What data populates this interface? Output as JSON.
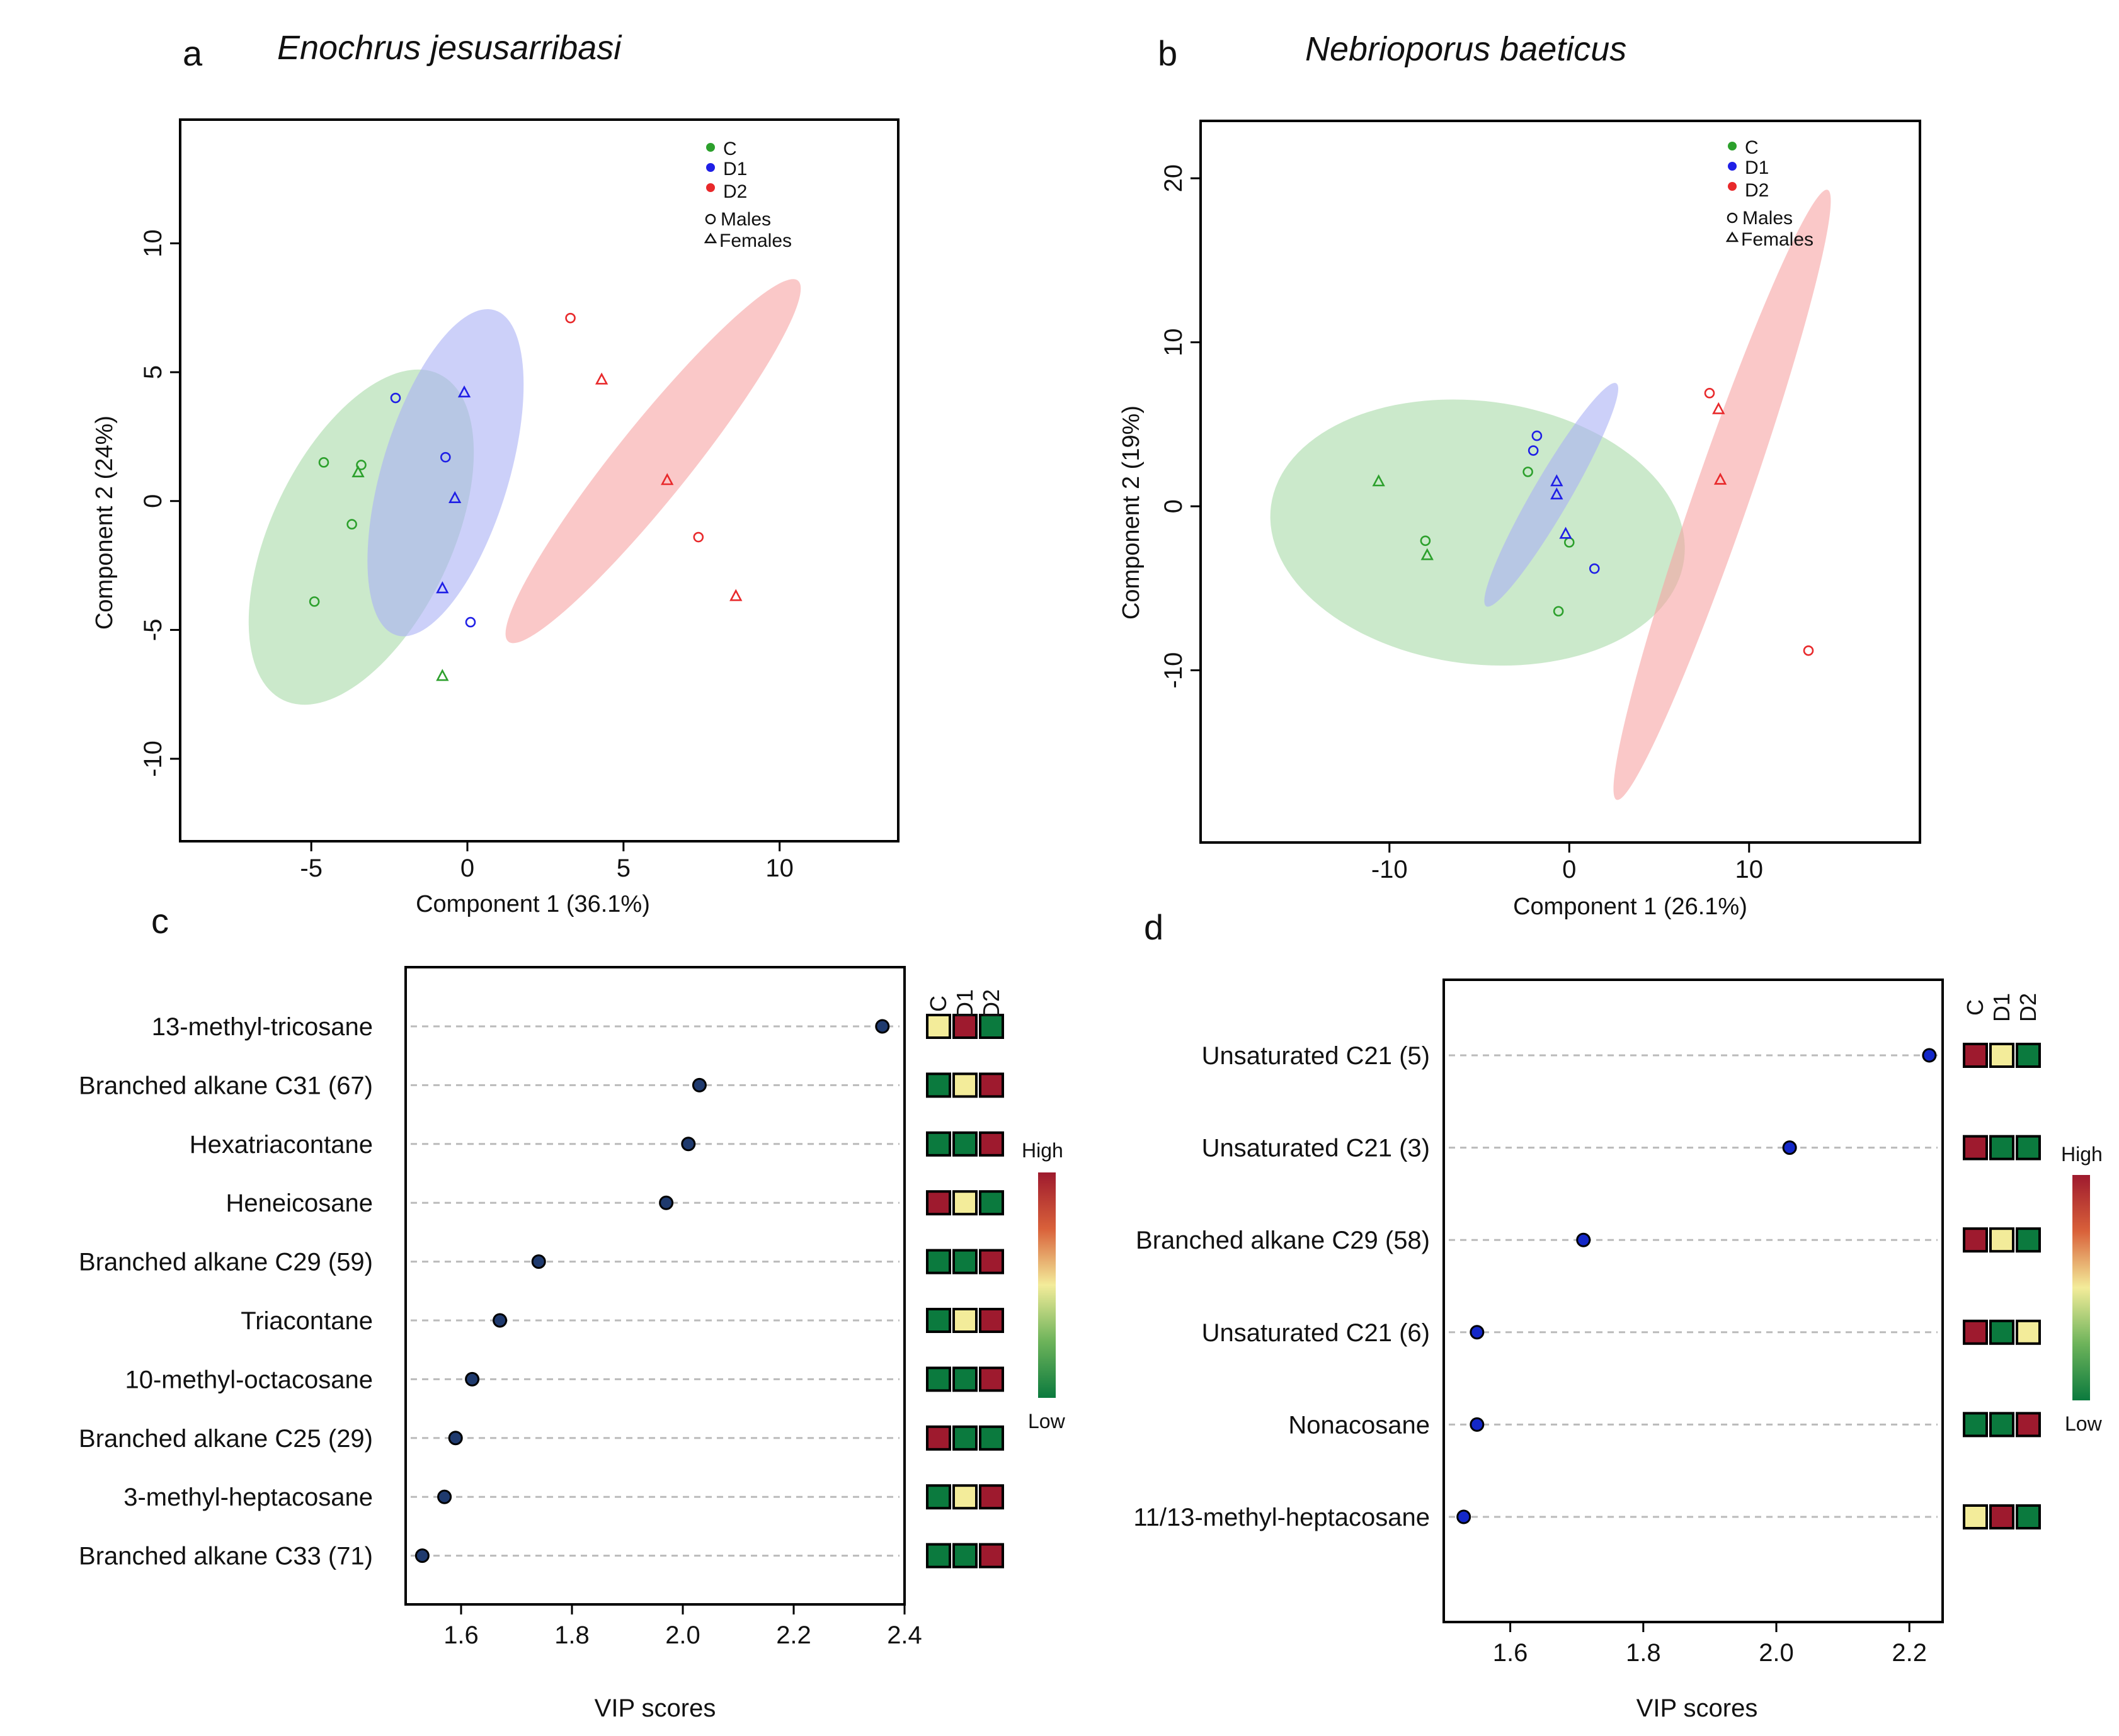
{
  "colors": {
    "C": "#2ca02c",
    "D1": "#1f1fe6",
    "D2": "#e8292b",
    "fillC": "#a8dba8",
    "fillD1": "#aab0f5",
    "fillD2": "#f7a4a4",
    "heatHigh": "#9e1a2e",
    "heatMid": "#f3ec9a",
    "heatLow": "#0b7a3e",
    "vipDotA": "#1f3a6e",
    "vipDotB": "#1428c8"
  },
  "legend": {
    "groups": [
      {
        "key": "C",
        "label": "C"
      },
      {
        "key": "D1",
        "label": "D1"
      },
      {
        "key": "D2",
        "label": "D2"
      }
    ],
    "shapes": [
      {
        "symbol": "o",
        "label": "Males"
      },
      {
        "symbol": "Δ",
        "label": "Females"
      }
    ],
    "heat_high": "High",
    "heat_low": "Low"
  },
  "chart_data": [
    {
      "panel": "a",
      "type": "scatter",
      "title": "Enochrus jesusarribasi",
      "xlabel": "Component 1 (36.1%)",
      "ylabel": "Component 2 (24%)",
      "xlim": [
        -9.2,
        13.8
      ],
      "ylim": [
        -13.2,
        14.8
      ],
      "xticks": [
        -5,
        0,
        5,
        10
      ],
      "yticks": [
        -10,
        -5,
        0,
        5,
        10
      ],
      "ellipses": [
        {
          "group": "C",
          "cx": -3.4,
          "cy": -1.4,
          "rx": 6.8,
          "ry": 2.95,
          "angle_deg": 68.5
        },
        {
          "group": "D1",
          "cx": -0.7,
          "cy": 1.1,
          "rx": 6.5,
          "ry": 2.05,
          "angle_deg": 76.0
        },
        {
          "group": "D2",
          "cx": 5.95,
          "cy": 1.55,
          "rx": 8.4,
          "ry": 1.25,
          "angle_deg": 56.5
        }
      ],
      "points": [
        {
          "group": "C",
          "sex": "male",
          "x": -4.6,
          "y": 1.5
        },
        {
          "group": "C",
          "sex": "male",
          "x": -3.4,
          "y": 1.4
        },
        {
          "group": "C",
          "sex": "female",
          "x": -3.5,
          "y": 1.1
        },
        {
          "group": "C",
          "sex": "male",
          "x": -3.7,
          "y": -0.9
        },
        {
          "group": "C",
          "sex": "male",
          "x": -4.9,
          "y": -3.9
        },
        {
          "group": "C",
          "sex": "female",
          "x": -0.8,
          "y": -6.8
        },
        {
          "group": "D1",
          "sex": "male",
          "x": -2.3,
          "y": 4.0
        },
        {
          "group": "D1",
          "sex": "female",
          "x": -0.1,
          "y": 4.2
        },
        {
          "group": "D1",
          "sex": "male",
          "x": -0.7,
          "y": 1.7
        },
        {
          "group": "D1",
          "sex": "female",
          "x": -0.4,
          "y": 0.1
        },
        {
          "group": "D1",
          "sex": "female",
          "x": -0.8,
          "y": -3.4
        },
        {
          "group": "D1",
          "sex": "male",
          "x": 0.1,
          "y": -4.7
        },
        {
          "group": "D2",
          "sex": "male",
          "x": 3.3,
          "y": 7.1
        },
        {
          "group": "D2",
          "sex": "female",
          "x": 4.3,
          "y": 4.7
        },
        {
          "group": "D2",
          "sex": "female",
          "x": 6.4,
          "y": 0.8
        },
        {
          "group": "D2",
          "sex": "male",
          "x": 7.4,
          "y": -1.4
        },
        {
          "group": "D2",
          "sex": "female",
          "x": 8.6,
          "y": -3.7
        }
      ]
    },
    {
      "panel": "b",
      "type": "scatter",
      "title": "Nebrioporus baeticus",
      "xlabel": "Component 1 (26.1%)",
      "ylabel": "Component 2 (19%)",
      "xlim": [
        -20.5,
        19.5
      ],
      "ylim": [
        -20.5,
        23.5
      ],
      "xticks": [
        -10,
        0,
        10
      ],
      "yticks": [
        -10,
        0,
        10,
        20
      ],
      "ellipses": [
        {
          "group": "C",
          "cx": -5.1,
          "cy": -1.6,
          "rx": 11.6,
          "ry": 8.0,
          "angle_deg": -8.0
        },
        {
          "group": "D1",
          "cx": -1.0,
          "cy": 0.7,
          "rx": 7.7,
          "ry": 1.05,
          "angle_deg": 62.0
        },
        {
          "group": "D2",
          "cx": 8.5,
          "cy": 0.7,
          "rx": 19.5,
          "ry": 1.55,
          "angle_deg": 72.5
        }
      ],
      "points": [
        {
          "group": "C",
          "sex": "female",
          "x": -10.6,
          "y": 1.5
        },
        {
          "group": "C",
          "sex": "male",
          "x": -8.0,
          "y": -2.1
        },
        {
          "group": "C",
          "sex": "female",
          "x": -7.9,
          "y": -3.0
        },
        {
          "group": "C",
          "sex": "male",
          "x": -2.3,
          "y": 2.1
        },
        {
          "group": "C",
          "sex": "male",
          "x": 0.0,
          "y": -2.2
        },
        {
          "group": "C",
          "sex": "male",
          "x": -0.6,
          "y": -6.4
        },
        {
          "group": "D1",
          "sex": "male",
          "x": -1.8,
          "y": 4.3
        },
        {
          "group": "D1",
          "sex": "male",
          "x": -2.0,
          "y": 3.4
        },
        {
          "group": "D1",
          "sex": "female",
          "x": -0.7,
          "y": 1.5
        },
        {
          "group": "D1",
          "sex": "female",
          "x": -0.7,
          "y": 0.7
        },
        {
          "group": "D1",
          "sex": "female",
          "x": -0.2,
          "y": -1.7
        },
        {
          "group": "D1",
          "sex": "male",
          "x": 1.4,
          "y": -3.8
        },
        {
          "group": "D2",
          "sex": "male",
          "x": 7.8,
          "y": 6.9
        },
        {
          "group": "D2",
          "sex": "female",
          "x": 8.3,
          "y": 5.9
        },
        {
          "group": "D2",
          "sex": "female",
          "x": 8.4,
          "y": 1.6
        },
        {
          "group": "D2",
          "sex": "male",
          "x": 13.3,
          "y": -8.8
        }
      ]
    },
    {
      "panel": "c",
      "type": "dot",
      "xlabel": "VIP scores",
      "xlim": [
        1.5,
        2.4
      ],
      "xticks": [
        1.6,
        1.8,
        2.0,
        2.2,
        2.4
      ],
      "heat_columns": [
        "C",
        "D1",
        "D2"
      ],
      "items": [
        {
          "label": "13-methyl-tricosane",
          "vip": 2.36,
          "heat": [
            "mid",
            "high",
            "low"
          ]
        },
        {
          "label": "Branched alkane C31 (67)",
          "vip": 2.03,
          "heat": [
            "low",
            "mid",
            "high"
          ]
        },
        {
          "label": "Hexatriacontane",
          "vip": 2.01,
          "heat": [
            "low",
            "low",
            "high"
          ]
        },
        {
          "label": "Heneicosane",
          "vip": 1.97,
          "heat": [
            "high",
            "mid",
            "low"
          ]
        },
        {
          "label": "Branched alkane C29 (59)",
          "vip": 1.74,
          "heat": [
            "low",
            "low",
            "high"
          ]
        },
        {
          "label": "Triacontane",
          "vip": 1.67,
          "heat": [
            "low",
            "mid",
            "high"
          ]
        },
        {
          "label": "10-methyl-octacosane",
          "vip": 1.62,
          "heat": [
            "low",
            "low",
            "high"
          ]
        },
        {
          "label": "Branched alkane C25 (29)",
          "vip": 1.59,
          "heat": [
            "high",
            "low",
            "low"
          ]
        },
        {
          "label": "3-methyl-heptacosane",
          "vip": 1.57,
          "heat": [
            "low",
            "mid",
            "high"
          ]
        },
        {
          "label": "Branched alkane C33 (71)",
          "vip": 1.53,
          "heat": [
            "low",
            "low",
            "high"
          ]
        }
      ]
    },
    {
      "panel": "d",
      "type": "dot",
      "xlabel": "VIP scores",
      "xlim": [
        1.5,
        2.25
      ],
      "xticks": [
        1.6,
        1.8,
        2.0,
        2.2
      ],
      "heat_columns": [
        "C",
        "D1",
        "D2"
      ],
      "items": [
        {
          "label": "Unsaturated C21 (5)",
          "vip": 2.23,
          "heat": [
            "high",
            "mid",
            "low"
          ]
        },
        {
          "label": "Unsaturated C21 (3)",
          "vip": 2.02,
          "heat": [
            "high",
            "low",
            "low"
          ]
        },
        {
          "label": "Branched alkane C29 (58)",
          "vip": 1.71,
          "heat": [
            "high",
            "mid",
            "low"
          ]
        },
        {
          "label": "Unsaturated C21 (6)",
          "vip": 1.55,
          "heat": [
            "high",
            "low",
            "mid"
          ]
        },
        {
          "label": "Nonacosane",
          "vip": 1.55,
          "heat": [
            "low",
            "low",
            "high"
          ]
        },
        {
          "label": "11/13-methyl-heptacosane",
          "vip": 1.53,
          "heat": [
            "mid",
            "high",
            "low"
          ]
        }
      ]
    }
  ]
}
